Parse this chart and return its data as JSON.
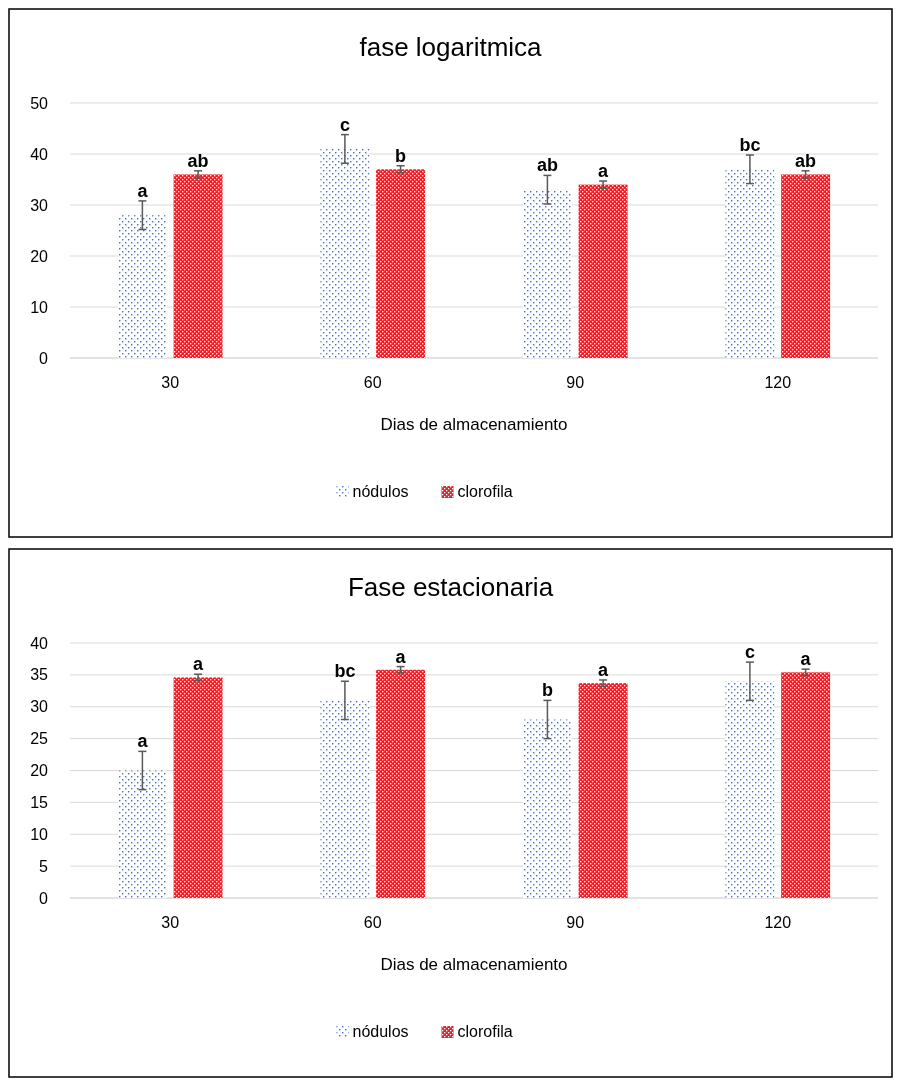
{
  "chart_data": [
    {
      "type": "bar",
      "title": "fase logaritmica",
      "xlabel": "Dias de almacenamiento",
      "categories": [
        "30",
        "60",
        "90",
        "120"
      ],
      "ylim": [
        0,
        50
      ],
      "yticks": [
        0,
        10,
        20,
        30,
        40,
        50
      ],
      "grid": "y",
      "legend": "bottom",
      "series": [
        {
          "name": "nódulos",
          "color": "#4472c4",
          "values": [
            28,
            41,
            33,
            37
          ],
          "errors": [
            2.8,
            2.8,
            2.8,
            2.8
          ],
          "value_labels": [
            "a",
            "c",
            "ab",
            "bc"
          ]
        },
        {
          "name": "clorofila",
          "color": "#e8222a",
          "values": [
            36,
            37,
            34,
            36
          ],
          "errors": [
            0.7,
            0.7,
            0.7,
            0.7
          ],
          "value_labels": [
            "ab",
            "b",
            "a",
            "ab"
          ]
        }
      ]
    },
    {
      "type": "bar",
      "title": "Fase estacionaria",
      "xlabel": "Dias de almacenamiento",
      "categories": [
        "30",
        "60",
        "90",
        "120"
      ],
      "ylim": [
        0,
        40
      ],
      "yticks": [
        0,
        5,
        10,
        15,
        20,
        25,
        30,
        35,
        40
      ],
      "grid": "y",
      "legend": "bottom",
      "series": [
        {
          "name": "nódulos",
          "color": "#4472c4",
          "values": [
            20,
            31,
            28,
            34
          ],
          "errors": [
            3,
            3,
            3,
            3
          ],
          "value_labels": [
            "a",
            "bc",
            "b",
            "c"
          ]
        },
        {
          "name": "clorofila",
          "color": "#e8222a",
          "values": [
            34.6,
            35.8,
            33.7,
            35.4
          ],
          "errors": [
            0.5,
            0.5,
            0.5,
            0.5
          ],
          "value_labels": [
            "a",
            "a",
            "a",
            "a"
          ]
        }
      ]
    }
  ]
}
